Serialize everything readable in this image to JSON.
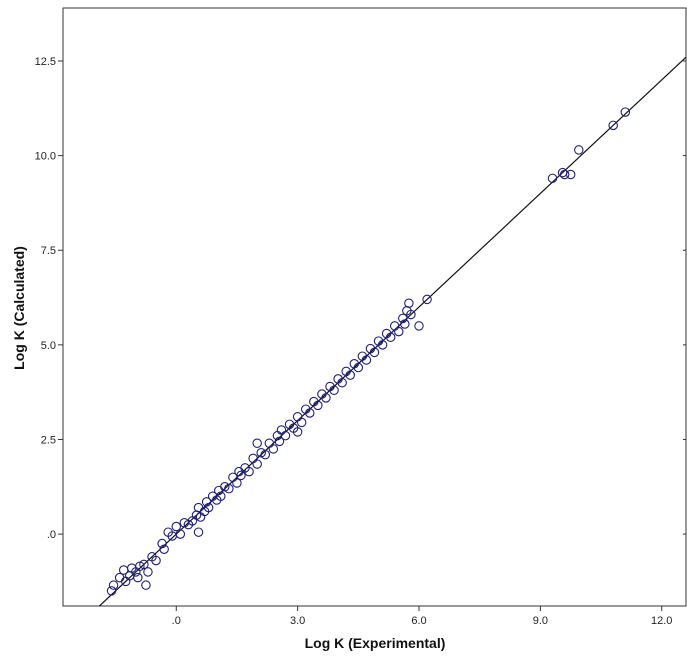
{
  "chart_data": {
    "type": "scatter",
    "title": "",
    "xlabel": "Log K (Experimental)",
    "ylabel": "Log K (Calculated)",
    "xlim": [
      -2.8,
      12.6
    ],
    "ylim": [
      -1.9,
      13.9
    ],
    "x_ticks": [
      0,
      3,
      6,
      9,
      12
    ],
    "x_tick_labels": [
      ".0",
      "3.0",
      "6.0",
      "9.0",
      "12.0"
    ],
    "y_ticks": [
      0,
      2.5,
      5,
      7.5,
      10,
      12.5
    ],
    "y_tick_labels": [
      ".0",
      "2.5",
      "5.0",
      "7.5",
      "10.0",
      "12.5"
    ],
    "grid": false,
    "legend": false,
    "fit_line": {
      "intercept": 0,
      "slope": 1
    },
    "series": [
      {
        "marker": "open-circle",
        "color": "#1f1f7a",
        "points": [
          [
            -1.6,
            -1.5
          ],
          [
            -1.55,
            -1.35
          ],
          [
            -1.4,
            -1.15
          ],
          [
            -1.3,
            -0.95
          ],
          [
            -1.25,
            -1.25
          ],
          [
            -1.15,
            -1.1
          ],
          [
            -1.1,
            -0.9
          ],
          [
            -1.0,
            -1.0
          ],
          [
            -0.95,
            -1.15
          ],
          [
            -0.9,
            -0.85
          ],
          [
            -0.8,
            -0.8
          ],
          [
            -0.75,
            -1.35
          ],
          [
            -0.7,
            -1.0
          ],
          [
            -0.6,
            -0.6
          ],
          [
            -0.5,
            -0.7
          ],
          [
            -0.35,
            -0.25
          ],
          [
            -0.3,
            -0.4
          ],
          [
            -0.2,
            0.05
          ],
          [
            -0.1,
            -0.05
          ],
          [
            0.0,
            0.2
          ],
          [
            0.1,
            0.0
          ],
          [
            0.2,
            0.3
          ],
          [
            0.3,
            0.25
          ],
          [
            0.4,
            0.35
          ],
          [
            0.5,
            0.5
          ],
          [
            0.55,
            0.7
          ],
          [
            0.6,
            0.45
          ],
          [
            0.7,
            0.6
          ],
          [
            0.75,
            0.85
          ],
          [
            0.8,
            0.7
          ],
          [
            0.9,
            1.0
          ],
          [
            1.0,
            0.9
          ],
          [
            1.05,
            1.15
          ],
          [
            1.1,
            1.0
          ],
          [
            1.2,
            1.25
          ],
          [
            1.3,
            1.2
          ],
          [
            1.4,
            1.5
          ],
          [
            1.5,
            1.35
          ],
          [
            1.55,
            1.65
          ],
          [
            1.6,
            1.55
          ],
          [
            1.7,
            1.75
          ],
          [
            1.8,
            1.65
          ],
          [
            1.9,
            2.0
          ],
          [
            2.0,
            1.85
          ],
          [
            2.1,
            2.15
          ],
          [
            2.2,
            2.1
          ],
          [
            2.3,
            2.4
          ],
          [
            2.4,
            2.25
          ],
          [
            2.5,
            2.6
          ],
          [
            2.55,
            2.45
          ],
          [
            2.6,
            2.75
          ],
          [
            2.7,
            2.6
          ],
          [
            2.8,
            2.9
          ],
          [
            2.9,
            2.8
          ],
          [
            3.0,
            3.1
          ],
          [
            3.1,
            2.95
          ],
          [
            3.2,
            3.3
          ],
          [
            3.3,
            3.2
          ],
          [
            3.4,
            3.5
          ],
          [
            3.5,
            3.4
          ],
          [
            3.6,
            3.7
          ],
          [
            3.7,
            3.6
          ],
          [
            3.8,
            3.9
          ],
          [
            3.9,
            3.8
          ],
          [
            4.0,
            4.1
          ],
          [
            4.1,
            4.0
          ],
          [
            4.2,
            4.3
          ],
          [
            4.3,
            4.2
          ],
          [
            4.4,
            4.5
          ],
          [
            4.5,
            4.4
          ],
          [
            4.6,
            4.7
          ],
          [
            4.7,
            4.6
          ],
          [
            4.8,
            4.9
          ],
          [
            4.9,
            4.8
          ],
          [
            5.0,
            5.1
          ],
          [
            5.1,
            5.0
          ],
          [
            5.2,
            5.3
          ],
          [
            5.3,
            5.2
          ],
          [
            5.4,
            5.5
          ],
          [
            5.5,
            5.35
          ],
          [
            5.6,
            5.7
          ],
          [
            5.65,
            5.55
          ],
          [
            5.7,
            5.9
          ],
          [
            5.75,
            6.1
          ],
          [
            5.8,
            5.8
          ],
          [
            6.0,
            5.5
          ],
          [
            6.2,
            6.2
          ],
          [
            0.55,
            0.05
          ],
          [
            2.0,
            2.4
          ],
          [
            3.0,
            2.7
          ],
          [
            9.3,
            9.4
          ],
          [
            9.55,
            9.55
          ],
          [
            9.6,
            9.5
          ],
          [
            9.75,
            9.5
          ],
          [
            9.95,
            10.15
          ],
          [
            10.8,
            10.8
          ],
          [
            11.1,
            11.15
          ]
        ]
      }
    ]
  }
}
